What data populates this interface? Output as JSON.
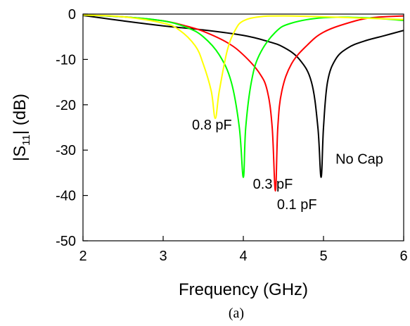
{
  "chart_data": {
    "type": "line",
    "title": "",
    "xlabel": "Frequency (GHz)",
    "ylabel_main": "|S",
    "ylabel_sub": "11",
    "ylabel_tail": "| (dB)",
    "caption": "(a)",
    "xlim": [
      2,
      6
    ],
    "ylim": [
      -50,
      0
    ],
    "x_ticks": [
      "2",
      "3",
      "4",
      "5",
      "6"
    ],
    "y_ticks": [
      "0",
      "-10",
      "-20",
      "-30",
      "-40",
      "-50"
    ],
    "grid": false,
    "legend": "none (series labelled inline)",
    "series": [
      {
        "name": "No Cap",
        "color": "#000000",
        "x": [
          2.0,
          2.5,
          3.0,
          3.5,
          4.0,
          4.3,
          4.5,
          4.7,
          4.85,
          4.93,
          4.97,
          5.0,
          5.05,
          5.15,
          5.3,
          5.5,
          5.75,
          6.0
        ],
        "y": [
          -0.3,
          -1.5,
          -2.6,
          -3.5,
          -4.7,
          -6.0,
          -7.3,
          -10.0,
          -15.0,
          -25.0,
          -36.0,
          -25.0,
          -15.0,
          -10.0,
          -7.5,
          -6.0,
          -4.8,
          -3.6
        ]
      },
      {
        "name": "0.1 pF",
        "color": "#ff0000",
        "x": [
          2.0,
          2.5,
          3.0,
          3.3,
          3.5,
          3.8,
          4.0,
          4.2,
          4.3,
          4.36,
          4.4,
          4.43,
          4.48,
          4.6,
          4.8,
          5.0,
          5.3,
          5.6,
          6.0
        ],
        "y": [
          -0.2,
          -0.6,
          -1.5,
          -2.7,
          -3.8,
          -6.3,
          -9.0,
          -13.0,
          -17.0,
          -25.0,
          -39.0,
          -25.0,
          -17.0,
          -11.0,
          -6.8,
          -4.0,
          -2.0,
          -0.8,
          -0.4
        ]
      },
      {
        "name": "0.3 pF",
        "color": "#00ff00",
        "x": [
          2.0,
          2.5,
          3.0,
          3.3,
          3.5,
          3.7,
          3.85,
          3.95,
          4.0,
          4.03,
          4.1,
          4.2,
          4.4,
          4.6,
          5.0,
          5.5,
          6.0
        ],
        "y": [
          -0.2,
          -0.6,
          -1.5,
          -3.0,
          -5.0,
          -9.0,
          -15.0,
          -25.0,
          -36.0,
          -25.0,
          -15.0,
          -9.0,
          -4.0,
          -2.0,
          -0.8,
          -0.8,
          -1.4
        ]
      },
      {
        "name": "0.8 pF",
        "color": "#ffff00",
        "x": [
          2.0,
          2.5,
          3.0,
          3.2,
          3.4,
          3.5,
          3.6,
          3.65,
          3.7,
          3.8,
          3.9,
          4.0,
          4.2,
          4.5,
          5.0,
          5.5,
          6.0
        ],
        "y": [
          -0.2,
          -0.6,
          -2.0,
          -3.5,
          -7.0,
          -11.0,
          -17.0,
          -23.0,
          -17.0,
          -8.0,
          -3.5,
          -1.5,
          -0.6,
          -0.4,
          -0.6,
          -0.9,
          -1.2
        ]
      }
    ],
    "annotations": [
      {
        "text": "0.8 pF",
        "x": 3.36,
        "y": -25.5
      },
      {
        "text": "0.3 pF",
        "x": 4.12,
        "y": -38.5
      },
      {
        "text": "0.1 pF",
        "x": 4.42,
        "y": -43.0
      },
      {
        "text": "No Cap",
        "x": 5.15,
        "y": -33.0
      }
    ]
  }
}
